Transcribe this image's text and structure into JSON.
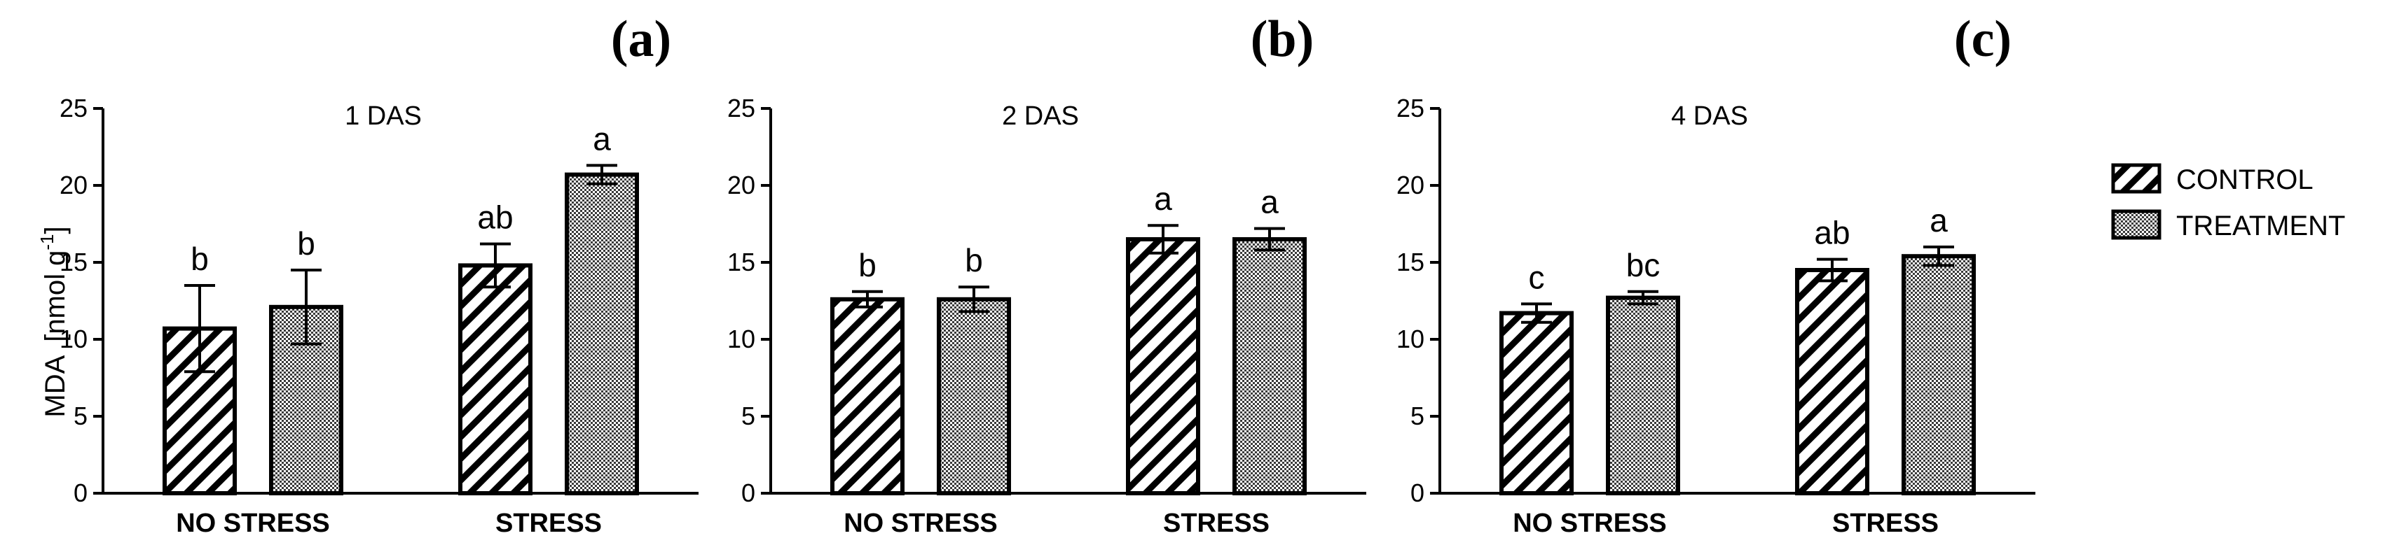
{
  "chart_data": {
    "type": "bar",
    "ylabel": {
      "main": "MDA",
      "unit_open": "[nmol g",
      "unit_sup": "-1",
      "unit_close": "]"
    },
    "ylim": [
      0,
      25
    ],
    "yticks": [
      "0",
      "5",
      "10",
      "15",
      "20",
      "25"
    ],
    "categories": [
      "NO STRESS",
      "STRESS"
    ],
    "legend": {
      "position": "right",
      "entries": [
        "CONTROL",
        "TREATMENT"
      ]
    },
    "panels": [
      {
        "label": "(a)",
        "title": "1 DAS",
        "series": [
          {
            "name": "CONTROL",
            "values": [
              10.7,
              14.8
            ],
            "errors": [
              2.8,
              1.4
            ],
            "letters": [
              "b",
              "ab"
            ]
          },
          {
            "name": "TREATMENT",
            "values": [
              12.1,
              20.7
            ],
            "errors": [
              2.4,
              0.6
            ],
            "letters": [
              "b",
              "a"
            ]
          }
        ]
      },
      {
        "label": "(b)",
        "title": "2 DAS",
        "series": [
          {
            "name": "CONTROL",
            "values": [
              12.6,
              16.5
            ],
            "errors": [
              0.5,
              0.9
            ],
            "letters": [
              "b",
              "a"
            ]
          },
          {
            "name": "TREATMENT",
            "values": [
              12.6,
              16.5
            ],
            "errors": [
              0.8,
              0.7
            ],
            "letters": [
              "b",
              "a"
            ]
          }
        ]
      },
      {
        "label": "(c)",
        "title": "4 DAS",
        "series": [
          {
            "name": "CONTROL",
            "values": [
              11.7,
              14.5
            ],
            "errors": [
              0.6,
              0.7
            ],
            "letters": [
              "c",
              "ab"
            ]
          },
          {
            "name": "TREATMENT",
            "values": [
              12.7,
              15.4
            ],
            "errors": [
              0.4,
              0.6
            ],
            "letters": [
              "bc",
              "a"
            ]
          }
        ]
      }
    ]
  }
}
